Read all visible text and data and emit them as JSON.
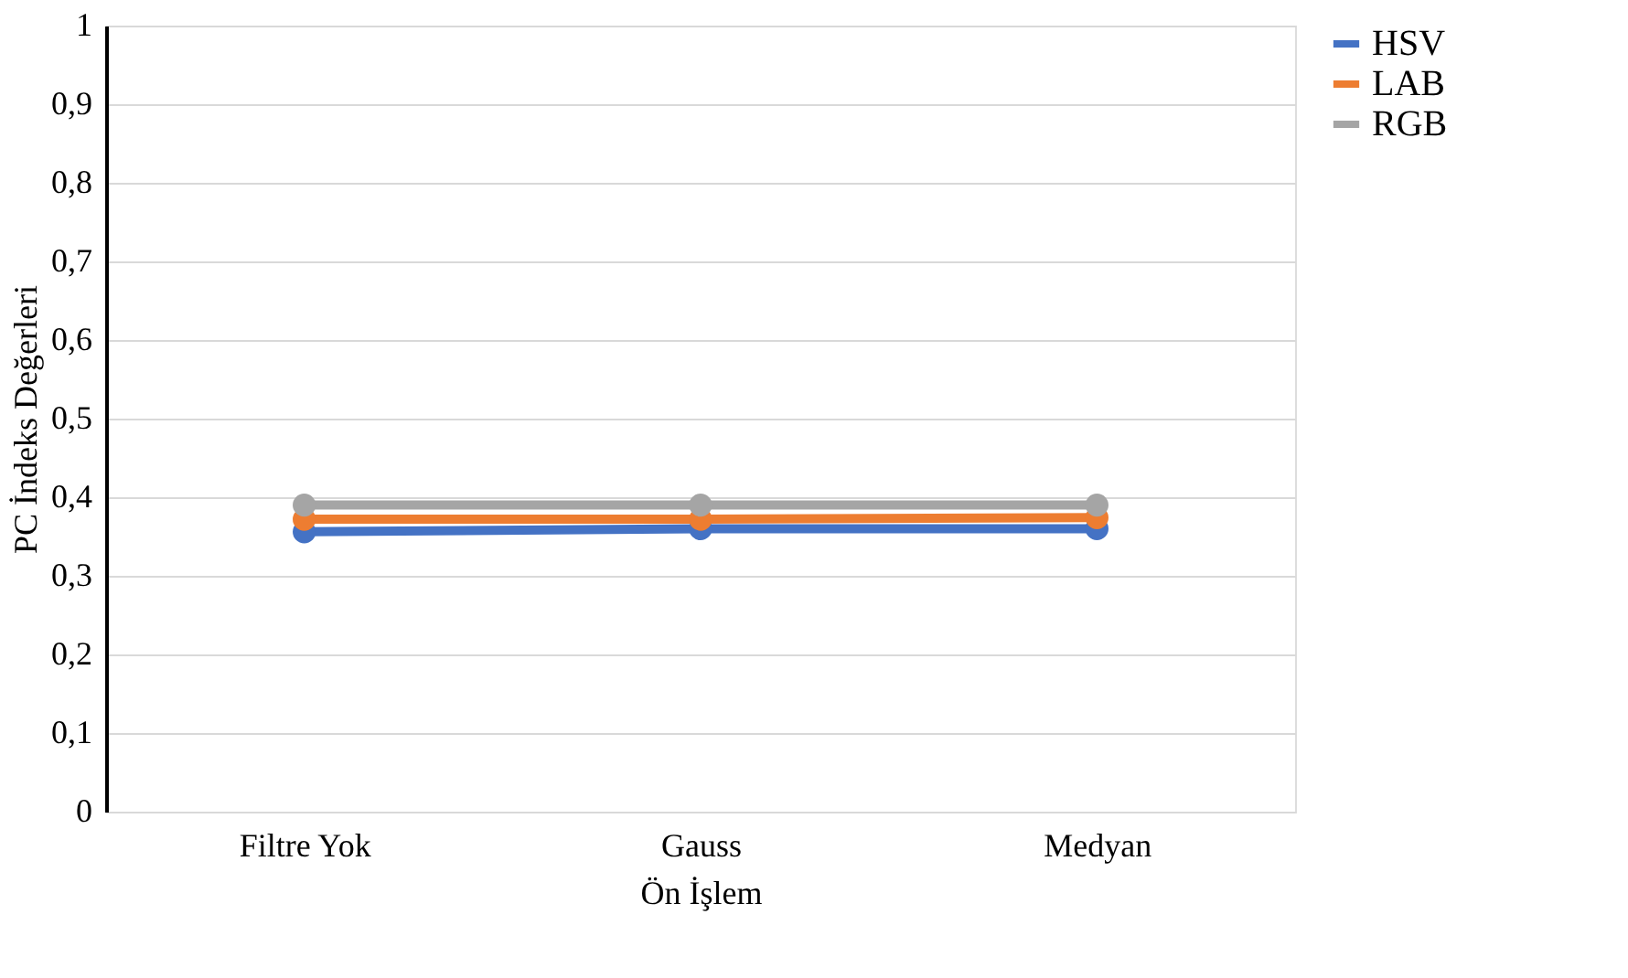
{
  "chart_data": {
    "type": "line",
    "xlabel": "Ön İşlem",
    "ylabel": "PC İndeks Değerleri",
    "categories": [
      "Filtre Yok",
      "Gauss",
      "Medyan"
    ],
    "series": [
      {
        "name": "HSV",
        "color": "#4472c4",
        "values": [
          0.356,
          0.36,
          0.36
        ]
      },
      {
        "name": "LAB",
        "color": "#ed7d31",
        "values": [
          0.372,
          0.372,
          0.374
        ]
      },
      {
        "name": "RGB",
        "color": "#a5a5a5",
        "values": [
          0.39,
          0.39,
          0.39
        ]
      }
    ],
    "ylim": [
      0,
      1
    ],
    "yticks": [
      {
        "value": 0,
        "label": "0"
      },
      {
        "value": 0.1,
        "label": "0,1"
      },
      {
        "value": 0.2,
        "label": "0,2"
      },
      {
        "value": 0.3,
        "label": "0,3"
      },
      {
        "value": 0.4,
        "label": "0,4"
      },
      {
        "value": 0.5,
        "label": "0,5"
      },
      {
        "value": 0.6,
        "label": "0,6"
      },
      {
        "value": 0.7,
        "label": "0,7"
      },
      {
        "value": 0.8,
        "label": "0,8"
      },
      {
        "value": 0.9,
        "label": "0,9"
      },
      {
        "value": 1,
        "label": "1"
      }
    ],
    "grid": "y",
    "legend": "right",
    "marker": "circle",
    "line_style": "solid"
  }
}
